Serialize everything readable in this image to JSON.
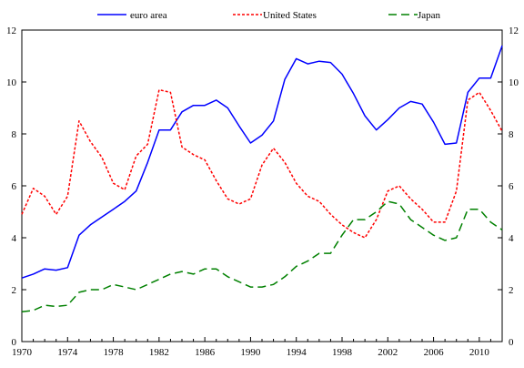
{
  "chart_data": {
    "type": "line",
    "title": "",
    "xlabel": "",
    "ylabel": "",
    "xlim": [
      1970,
      2012
    ],
    "ylim": [
      0,
      12
    ],
    "grid": false,
    "legend_position": "top",
    "x_ticks": [
      1970,
      1974,
      1978,
      1982,
      1986,
      1990,
      1994,
      1998,
      2002,
      2006,
      2010
    ],
    "y_ticks": [
      0,
      2,
      4,
      6,
      8,
      10,
      12
    ],
    "x_tick_labels": [
      "1970",
      "1974",
      "1978",
      "1982",
      "1986",
      "1990",
      "1994",
      "1998",
      "2002",
      "2006",
      "2010"
    ],
    "y_tick_labels": [
      "0",
      "2",
      "4",
      "6",
      "8",
      "10",
      "12"
    ],
    "x": [
      1970,
      1971,
      1972,
      1973,
      1974,
      1975,
      1976,
      1977,
      1978,
      1979,
      1980,
      1981,
      1982,
      1983,
      1984,
      1985,
      1986,
      1987,
      1988,
      1989,
      1990,
      1991,
      1992,
      1993,
      1994,
      1995,
      1996,
      1997,
      1998,
      1999,
      2000,
      2001,
      2002,
      2003,
      2004,
      2005,
      2006,
      2007,
      2008,
      2009,
      2010,
      2011,
      2012
    ],
    "series": [
      {
        "name": "euro area",
        "color": "#0000ff",
        "dash": "solid",
        "values": [
          2.45,
          2.6,
          2.8,
          2.75,
          2.85,
          4.1,
          4.5,
          4.8,
          5.1,
          5.4,
          5.8,
          6.9,
          8.15,
          8.15,
          8.85,
          9.1,
          9.1,
          9.3,
          9.0,
          8.3,
          7.65,
          7.95,
          8.5,
          10.1,
          10.9,
          10.7,
          10.8,
          10.75,
          10.3,
          9.55,
          8.7,
          8.15,
          8.55,
          9.0,
          9.25,
          9.15,
          8.45,
          7.6,
          7.65,
          9.6,
          10.15,
          10.15,
          11.4
        ]
      },
      {
        "name": "United States",
        "color": "#ff0000",
        "dash": "dotted",
        "values": [
          4.9,
          5.9,
          5.6,
          4.9,
          5.6,
          8.5,
          7.7,
          7.1,
          6.1,
          5.85,
          7.15,
          7.6,
          9.7,
          9.6,
          7.5,
          7.2,
          7.0,
          6.2,
          5.5,
          5.3,
          5.5,
          6.8,
          7.45,
          6.9,
          6.1,
          5.6,
          5.4,
          4.9,
          4.5,
          4.2,
          4.0,
          4.7,
          5.8,
          6.0,
          5.5,
          5.1,
          4.6,
          4.6,
          5.8,
          9.3,
          9.6,
          8.9,
          8.1
        ]
      },
      {
        "name": "Japan",
        "color": "#008000",
        "dash": "dashed",
        "values": [
          1.15,
          1.2,
          1.4,
          1.35,
          1.4,
          1.9,
          2.0,
          2.0,
          2.2,
          2.1,
          2.0,
          2.2,
          2.4,
          2.6,
          2.7,
          2.6,
          2.8,
          2.8,
          2.5,
          2.3,
          2.1,
          2.1,
          2.2,
          2.5,
          2.9,
          3.1,
          3.4,
          3.4,
          4.1,
          4.7,
          4.7,
          5.0,
          5.4,
          5.3,
          4.7,
          4.4,
          4.1,
          3.9,
          4.0,
          5.1,
          5.1,
          4.6,
          4.3
        ]
      }
    ]
  }
}
